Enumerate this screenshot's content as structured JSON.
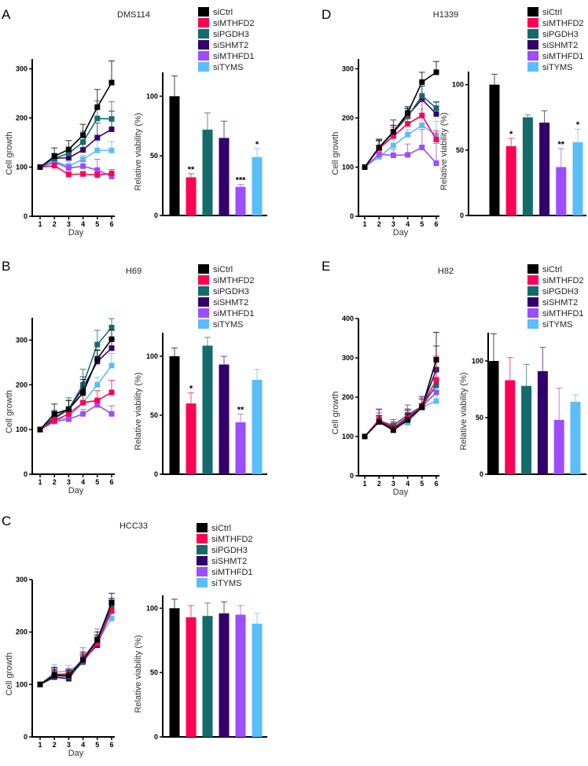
{
  "chart_data": [
    {
      "panel": "A",
      "title": "DMS114",
      "type": "line+bar",
      "line": {
        "type": "line",
        "xlabel": "Day",
        "ylabel": "Cell growth",
        "x": [
          1,
          2,
          3,
          4,
          5,
          6
        ],
        "ylim": [
          0,
          320
        ],
        "yticks": [
          0,
          100,
          200,
          300
        ],
        "series": [
          {
            "name": "siCtrl",
            "color": "#000000",
            "values": [
              100,
              122,
              136,
              165,
              222,
              272
            ],
            "errors": [
              0,
              17,
              18,
              22,
              36,
              44
            ]
          },
          {
            "name": "siMTHFD2",
            "color": "#ff0055",
            "values": [
              100,
              103,
              85,
              86,
              84,
              87
            ],
            "errors": [
              0,
              5,
              5,
              5,
              5,
              8
            ]
          },
          {
            "name": "siPGDH3",
            "color": "#156b6b",
            "values": [
              100,
              118,
              128,
              151,
              199,
              198
            ],
            "errors": [
              0,
              10,
              10,
              22,
              36,
              35
            ]
          },
          {
            "name": "siSHMT2",
            "color": "#33006b",
            "values": [
              100,
              118,
              119,
              135,
              160,
              177
            ],
            "errors": [
              0,
              10,
              10,
              15,
              30,
              37
            ]
          },
          {
            "name": "siMTHFD1",
            "color": "#9b4dff",
            "values": [
              100,
              110,
              98,
              102,
              94,
              81
            ],
            "errors": [
              0,
              8,
              8,
              10,
              22,
              5
            ]
          },
          {
            "name": "siTYMS",
            "color": "#5bbdf9",
            "values": [
              100,
              112,
              102,
              116,
              134,
              134
            ],
            "errors": [
              0,
              8,
              10,
              8,
              20,
              18
            ]
          }
        ]
      },
      "bar": {
        "type": "bar",
        "ylabel": "Relative viability (%)",
        "ylim": [
          0,
          120
        ],
        "yticks": [
          0,
          50,
          100
        ],
        "categories": [
          "siCtrl",
          "siMTHFD2",
          "siPGDH3",
          "siSHMT2",
          "siMTHFD1",
          "siTYMS"
        ],
        "colors": [
          "#000000",
          "#ff0055",
          "#156b6b",
          "#33006b",
          "#9b4dff",
          "#5bbdf9"
        ],
        "values": [
          100,
          32,
          72,
          65,
          24,
          49
        ],
        "errors": [
          17,
          3,
          14,
          14,
          2,
          7
        ],
        "annotations": [
          "",
          "**",
          "",
          "",
          "***",
          "*"
        ]
      }
    },
    {
      "panel": "B",
      "title": "H69",
      "type": "line+bar",
      "line": {
        "type": "line",
        "xlabel": "Day",
        "ylabel": "Cell growth",
        "x": [
          1,
          2,
          3,
          4,
          5,
          6
        ],
        "ylim": [
          0,
          350
        ],
        "yticks": [
          0,
          100,
          200,
          300
        ],
        "series": [
          {
            "name": "siCtrl",
            "color": "#000000",
            "values": [
              100,
              135,
              145,
              182,
              258,
              302
            ],
            "errors": [
              0,
              22,
              20,
              30,
              20,
              20
            ]
          },
          {
            "name": "siMTHFD2",
            "color": "#ff0055",
            "values": [
              100,
              120,
              135,
              160,
              165,
              183
            ],
            "errors": [
              0,
              10,
              10,
              20,
              22,
              27
            ]
          },
          {
            "name": "siPGDH3",
            "color": "#156b6b",
            "values": [
              100,
              128,
              146,
              200,
              290,
              328
            ],
            "errors": [
              0,
              15,
              25,
              35,
              32,
              20
            ]
          },
          {
            "name": "siSHMT2",
            "color": "#33006b",
            "values": [
              100,
              125,
              145,
              193,
              252,
              282
            ],
            "errors": [
              0,
              15,
              20,
              25,
              25,
              20
            ]
          },
          {
            "name": "siMTHFD1",
            "color": "#9b4dff",
            "values": [
              100,
              118,
              123,
              135,
              155,
              135
            ],
            "errors": [
              0,
              8,
              8,
              10,
              12,
              18
            ]
          },
          {
            "name": "siTYMS",
            "color": "#5bbdf9",
            "values": [
              100,
              120,
              128,
              160,
              200,
              243
            ],
            "errors": [
              0,
              10,
              10,
              15,
              17,
              27
            ]
          }
        ]
      },
      "bar": {
        "type": "bar",
        "ylabel": "Relative viability (%)",
        "ylim": [
          0,
          120
        ],
        "yticks": [
          0,
          50,
          100
        ],
        "categories": [
          "siCtrl",
          "siMTHFD2",
          "siPGDH3",
          "siSHMT2",
          "siMTHFD1",
          "siTYMS"
        ],
        "colors": [
          "#000000",
          "#ff0055",
          "#156b6b",
          "#33006b",
          "#9b4dff",
          "#5bbdf9"
        ],
        "values": [
          100,
          60,
          109,
          93,
          44,
          80
        ],
        "errors": [
          7,
          9,
          7,
          7,
          7,
          9
        ],
        "annotations": [
          "",
          "*",
          "",
          "",
          "**",
          ""
        ]
      }
    },
    {
      "panel": "C",
      "title": "HCC33",
      "type": "line+bar",
      "line": {
        "type": "line",
        "xlabel": "Day",
        "ylabel": "Cell growth",
        "x": [
          1,
          2,
          3,
          4,
          5,
          6
        ],
        "ylim": [
          0,
          300
        ],
        "yticks": [
          0,
          100,
          200,
          300
        ],
        "series": [
          {
            "name": "siCtrl",
            "color": "#000000",
            "values": [
              100,
              118,
              117,
              147,
              185,
              256
            ],
            "errors": [
              0,
              15,
              10,
              15,
              15,
              18
            ]
          },
          {
            "name": "siMTHFD2",
            "color": "#ff0055",
            "values": [
              100,
              119,
              120,
              145,
              178,
              240
            ],
            "errors": [
              0,
              12,
              10,
              12,
              15,
              15
            ]
          },
          {
            "name": "siPGDH3",
            "color": "#156b6b",
            "values": [
              100,
              117,
              115,
              143,
              180,
              245
            ],
            "errors": [
              0,
              12,
              10,
              12,
              15,
              15
            ]
          },
          {
            "name": "siSHMT2",
            "color": "#33006b",
            "values": [
              100,
              114,
              111,
              147,
              175,
              248
            ],
            "errors": [
              0,
              12,
              10,
              12,
              15,
              15
            ]
          },
          {
            "name": "siMTHFD1",
            "color": "#9b4dff",
            "values": [
              100,
              116,
              118,
              150,
              186,
              250
            ],
            "errors": [
              0,
              12,
              10,
              20,
              20,
              15
            ]
          },
          {
            "name": "siTYMS",
            "color": "#5bbdf9",
            "values": [
              100,
              123,
              126,
              142,
              182,
              226
            ],
            "errors": [
              0,
              15,
              10,
              10,
              12,
              12
            ]
          }
        ]
      },
      "bar": {
        "type": "bar",
        "ylabel": "Relative viability (%)",
        "ylim": [
          0,
          110
        ],
        "yticks": [
          0,
          50,
          100
        ],
        "categories": [
          "siCtrl",
          "siMTHFD2",
          "siPGDH3",
          "siSHMT2",
          "siMTHFD1",
          "siTYMS"
        ],
        "colors": [
          "#000000",
          "#ff0055",
          "#156b6b",
          "#33006b",
          "#9b4dff",
          "#5bbdf9"
        ],
        "values": [
          100,
          93,
          94,
          96,
          95,
          88
        ],
        "errors": [
          7,
          9,
          10,
          9,
          7,
          8
        ],
        "annotations": [
          "",
          "",
          "",
          "",
          "",
          ""
        ]
      }
    },
    {
      "panel": "D",
      "title": "H1339",
      "type": "line+bar",
      "line": {
        "type": "line",
        "xlabel": "Day",
        "ylabel": "Cell growth",
        "x": [
          1,
          2,
          3,
          4,
          5,
          6
        ],
        "ylim": [
          0,
          320
        ],
        "yticks": [
          0,
          100,
          200,
          300
        ],
        "series": [
          {
            "name": "siCtrl",
            "color": "#000000",
            "values": [
              100,
              140,
              172,
              210,
              273,
              293
            ],
            "errors": [
              0,
              17,
              13,
              13,
              20,
              22
            ]
          },
          {
            "name": "siMTHFD2",
            "color": "#ff0055",
            "values": [
              100,
              138,
              163,
              188,
              205,
              156
            ],
            "errors": [
              0,
              15,
              18,
              15,
              30,
              18
            ]
          },
          {
            "name": "siPGDH3",
            "color": "#156b6b",
            "values": [
              100,
              139,
              170,
              203,
              245,
              220
            ],
            "errors": [
              0,
              15,
              15,
              15,
              20,
              12
            ]
          },
          {
            "name": "siSHMT2",
            "color": "#33006b",
            "values": [
              100,
              140,
              171,
              205,
              238,
              208
            ],
            "errors": [
              0,
              15,
              25,
              15,
              27,
              25
            ]
          },
          {
            "name": "siMTHFD1",
            "color": "#9b4dff",
            "values": [
              100,
              126,
              124,
              125,
              140,
              108
            ],
            "errors": [
              0,
              10,
              12,
              22,
              37,
              40
            ]
          },
          {
            "name": "siTYMS",
            "color": "#5bbdf9",
            "values": [
              100,
              121,
              144,
              166,
              185,
              165
            ],
            "errors": [
              0,
              10,
              15,
              10,
              33,
              28
            ]
          }
        ]
      },
      "bar": {
        "type": "bar",
        "ylabel": "Relative viability (%)",
        "ylim": [
          0,
          110
        ],
        "yticks": [
          0,
          50,
          100
        ],
        "categories": [
          "siCtrl",
          "siMTHFD2",
          "siPGDH3",
          "siSHMT2",
          "siMTHFD1",
          "siTYMS"
        ],
        "colors": [
          "#000000",
          "#ff0055",
          "#156b6b",
          "#33006b",
          "#9b4dff",
          "#5bbdf9"
        ],
        "values": [
          100,
          53,
          75,
          71,
          37,
          56
        ],
        "errors": [
          8,
          6,
          2,
          9,
          14,
          10
        ],
        "annotations": [
          "",
          "*",
          "",
          "",
          "**",
          "*"
        ]
      }
    },
    {
      "panel": "E",
      "title": "H82",
      "type": "line+bar",
      "line": {
        "type": "line",
        "xlabel": "Day",
        "ylabel": "Cell growth",
        "x": [
          1,
          2,
          3,
          4,
          5,
          6
        ],
        "ylim": [
          0,
          400
        ],
        "yticks": [
          0,
          100,
          200,
          300,
          400
        ],
        "series": [
          {
            "name": "siCtrl",
            "color": "#000000",
            "values": [
              100,
              137,
              116,
              142,
              174,
              295
            ],
            "errors": [
              0,
              15,
              10,
              15,
              10,
              70
            ]
          },
          {
            "name": "siMTHFD2",
            "color": "#ff0055",
            "values": [
              100,
              143,
              122,
              150,
              176,
              244
            ],
            "errors": [
              0,
              25,
              15,
              20,
              20,
              60
            ]
          },
          {
            "name": "siPGDH3",
            "color": "#156b6b",
            "values": [
              100,
              140,
              128,
              155,
              177,
              230
            ],
            "errors": [
              0,
              30,
              15,
              25,
              25,
              40
            ]
          },
          {
            "name": "siSHMT2",
            "color": "#33006b",
            "values": [
              100,
              138,
              120,
              148,
              175,
              270
            ],
            "errors": [
              0,
              15,
              12,
              20,
              20,
              60
            ]
          },
          {
            "name": "siMTHFD1",
            "color": "#9b4dff",
            "values": [
              100,
              140,
              120,
              145,
              176,
              212
            ],
            "errors": [
              0,
              20,
              12,
              20,
              25,
              30
            ]
          },
          {
            "name": "siTYMS",
            "color": "#5bbdf9",
            "values": [
              100,
              140,
              125,
              135,
              175,
              190
            ],
            "errors": [
              0,
              20,
              12,
              20,
              25,
              25
            ]
          }
        ]
      },
      "bar": {
        "type": "bar",
        "ylabel": "Relative viability (%)",
        "ylim": [
          0,
          125
        ],
        "yticks": [
          0,
          50,
          100
        ],
        "categories": [
          "siCtrl",
          "siMTHFD2",
          "siPGDH3",
          "siSHMT2",
          "siMTHFD1",
          "siTYMS"
        ],
        "colors": [
          "#000000",
          "#ff0055",
          "#156b6b",
          "#33006b",
          "#9b4dff",
          "#5bbdf9"
        ],
        "values": [
          100,
          83,
          78,
          91,
          48,
          64
        ],
        "errors": [
          24,
          20,
          19,
          21,
          28,
          6
        ],
        "annotations": [
          "",
          "",
          "",
          "",
          "",
          ""
        ]
      }
    }
  ]
}
